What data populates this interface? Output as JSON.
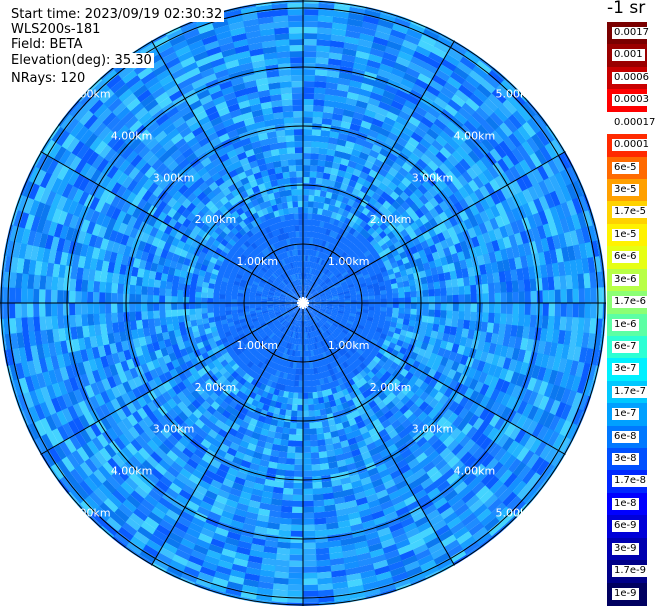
{
  "header": {
    "start_time": "Start time: 2023/09/19 02:30:32",
    "device": "WLS200s-181",
    "field": "Field: BETA",
    "elevation": "Elevation(deg): 35.30",
    "nrays": "NRays: 120"
  },
  "ppi": {
    "ring_labels": [
      "1.00km",
      "2.00km",
      "3.00km",
      "4.00km",
      "5.00km"
    ],
    "range_max_km": 5.0,
    "ray_count": 120
  },
  "colorbar": {
    "units": "-1 sr",
    "labels": [
      "0.0017",
      "0.001",
      "0.0006",
      "0.0003",
      "0.00017",
      "0.0001",
      "6e-5",
      "3e-5",
      "1.7e-5",
      "1e-5",
      "6e-6",
      "3e-6",
      "1.7e-6",
      "1e-6",
      "6e-7",
      "3e-7",
      "1.7e-7",
      "1e-7",
      "6e-8",
      "3e-8",
      "1.7e-8",
      "1e-8",
      "6e-9",
      "3e-9",
      "1.7e-9",
      "1e-9"
    ],
    "colors": [
      "#7a0000",
      "#9a0000",
      "#c80000",
      "#ff0000",
      "#ffffff",
      "#ff2a00",
      "#ff6a00",
      "#ffa000",
      "#ffd200",
      "#fff200",
      "#e6ff14",
      "#b8ff46",
      "#8cff74",
      "#5cffa4",
      "#2cffd4",
      "#00f0ff",
      "#00c8ff",
      "#00a0ff",
      "#0078ff",
      "#0050ff",
      "#0028ff",
      "#0000ff",
      "#0000d8",
      "#0000b0",
      "#000088",
      "#000060"
    ]
  }
}
